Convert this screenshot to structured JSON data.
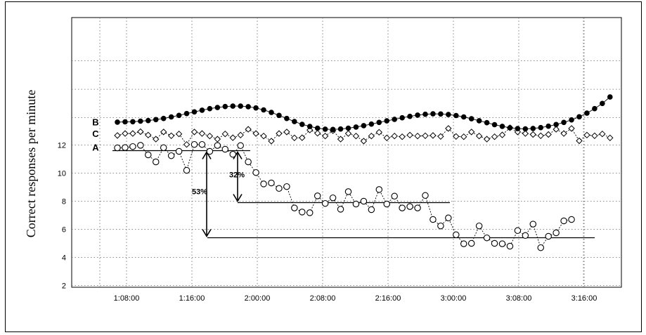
{
  "chart_data": {
    "type": "line",
    "title": "",
    "xlabel": "",
    "ylabel": "Correct responses per minute",
    "ylim": [
      2,
      12
    ],
    "y_ticks": [
      "2",
      "4",
      "6",
      "8",
      "10",
      "12"
    ],
    "x_tick_labels": [
      "1:08:00",
      "1:16:00",
      "2:00:00",
      "2:08:00",
      "2:16:00",
      "3:00:00",
      "3:08:00",
      "3:16:00"
    ],
    "grid": true,
    "series": [
      {
        "name": "C",
        "marker": "open-diamond",
        "values": [
          12.68,
          12.82,
          12.82,
          12.95,
          12.71,
          12.42,
          12.93,
          12.66,
          12.79,
          12.04,
          12.93,
          12.82,
          12.64,
          12.42,
          12.79,
          12.52,
          12.71,
          13.12,
          12.82,
          12.64,
          12.28,
          12.82,
          12.93,
          12.51,
          12.52,
          13.07,
          12.84,
          12.64,
          13.02,
          12.42,
          12.82,
          12.64,
          12.28,
          12.64,
          12.91,
          12.51,
          12.64,
          12.59,
          12.71,
          12.64,
          12.66,
          12.68,
          12.61,
          13.18,
          12.61,
          12.59,
          12.93,
          12.64,
          12.42,
          12.59,
          12.72,
          13.23,
          12.93,
          12.82,
          12.75,
          12.66,
          12.75,
          13.12,
          12.82,
          13.18,
          12.3,
          12.71,
          12.66,
          12.79,
          12.51
        ]
      },
      {
        "name": "B",
        "marker": "filled-circle",
        "values": [
          13.63,
          13.65,
          13.66,
          13.7,
          13.74,
          13.81,
          13.89,
          14.0,
          14.11,
          14.24,
          14.36,
          14.48,
          14.59,
          14.67,
          14.74,
          14.77,
          14.77,
          14.73,
          14.64,
          14.5,
          14.32,
          14.11,
          13.89,
          13.67,
          13.47,
          13.32,
          13.2,
          13.13,
          13.11,
          13.14,
          13.2,
          13.28,
          13.38,
          13.49,
          13.61,
          13.72,
          13.83,
          13.94,
          14.04,
          14.13,
          14.19,
          14.22,
          14.21,
          14.17,
          14.1,
          14.0,
          13.87,
          13.73,
          13.59,
          13.45,
          13.33,
          13.23,
          13.17,
          13.15,
          13.18,
          13.24,
          13.34,
          13.46,
          13.61,
          13.79,
          14.01,
          14.27,
          14.59,
          14.96,
          15.42
        ]
      },
      {
        "name": "A",
        "marker": "open-circle",
        "values": [
          11.8,
          11.82,
          11.89,
          11.98,
          11.3,
          10.8,
          11.81,
          11.24,
          11.55,
          10.2,
          12.04,
          12.04,
          11.55,
          11.97,
          11.7,
          11.34,
          11.96,
          10.8,
          10.04,
          9.23,
          9.3,
          8.91,
          9.04,
          7.52,
          7.23,
          7.18,
          8.38,
          7.84,
          8.24,
          7.43,
          8.68,
          7.8,
          8.0,
          7.4,
          8.83,
          7.8,
          8.36,
          7.52,
          7.62,
          7.52,
          8.41,
          6.7,
          6.24,
          6.81,
          5.61,
          4.97,
          5.0,
          6.24,
          5.39,
          5.0,
          4.97,
          4.8,
          5.91,
          5.56,
          6.37,
          4.69,
          5.5,
          5.75,
          6.6,
          6.7
        ]
      }
    ],
    "phase_lines": [
      {
        "label": "",
        "value": 11.6
      },
      {
        "label": "",
        "value": 7.9
      },
      {
        "label": "",
        "value": 5.4
      }
    ],
    "annotations": [
      {
        "label": "53%"
      },
      {
        "label": "32%"
      }
    ]
  }
}
